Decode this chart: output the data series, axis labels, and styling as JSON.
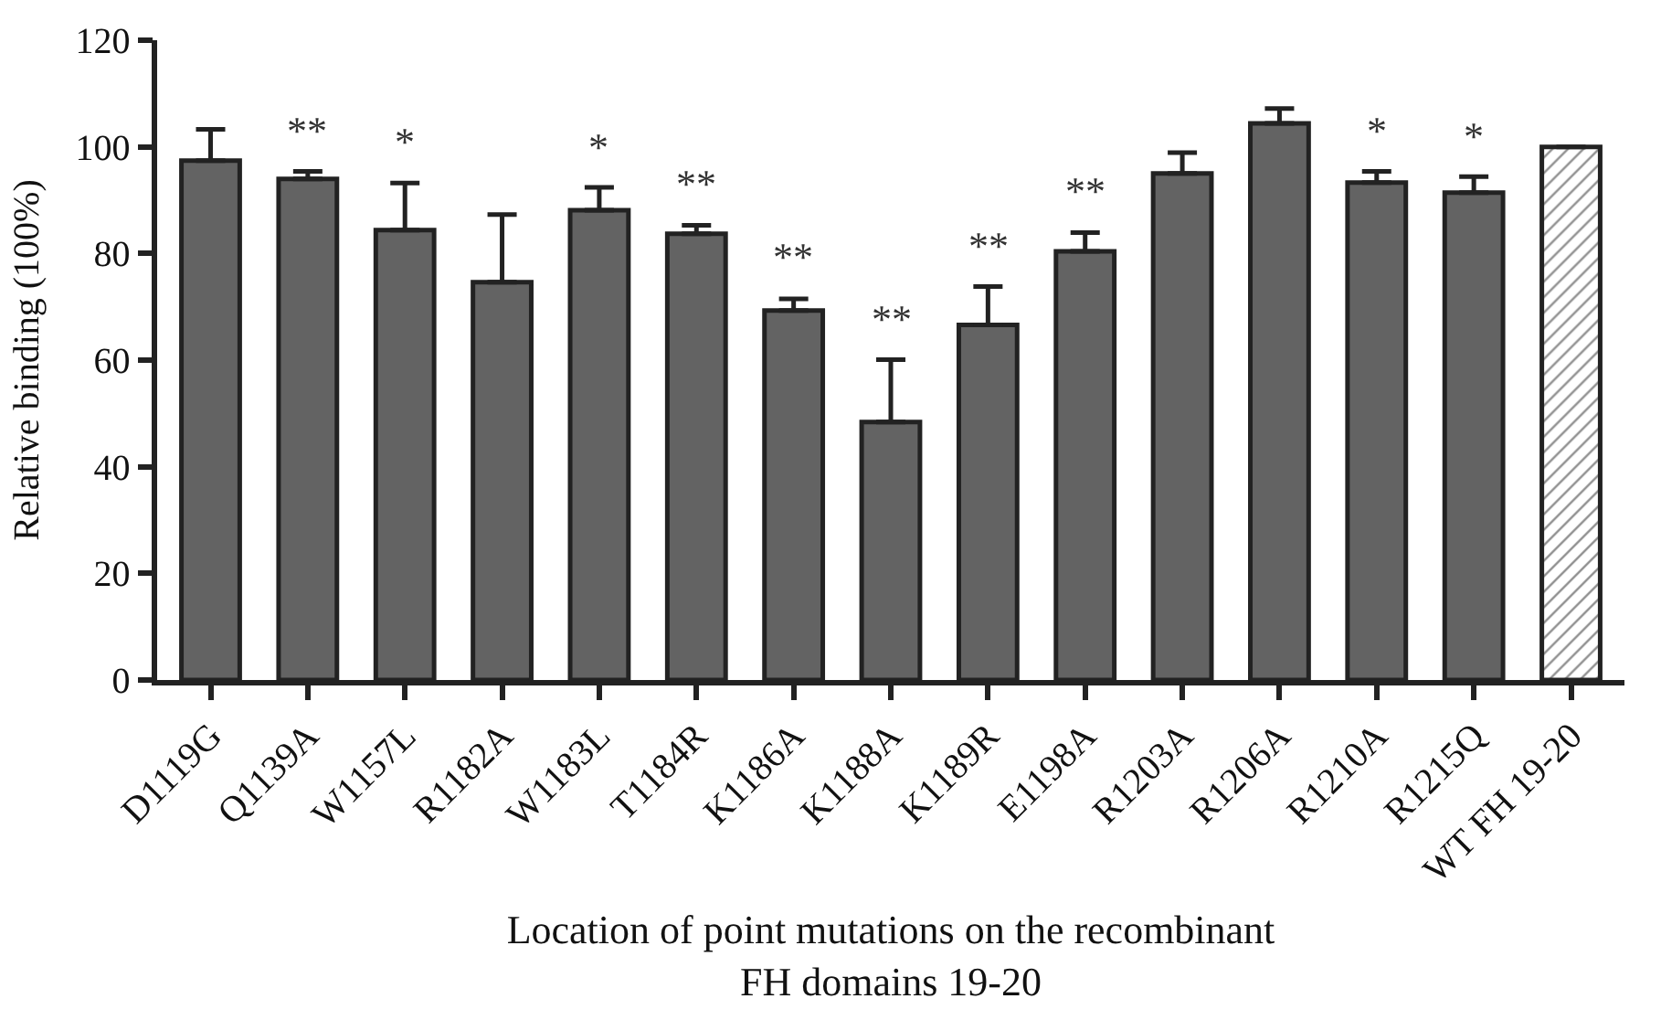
{
  "chart_data": {
    "type": "bar",
    "ylabel": "Relative binding (100%)",
    "xlabel": "Location of point mutations on the recombinant\nFH domains 19-20",
    "categories": [
      "D1119G",
      "Q1139A",
      "W1157L",
      "R1182A",
      "W1183L",
      "T1184R",
      "K1186A",
      "K1188A",
      "K1189R",
      "E1198A",
      "R1203A",
      "R1206A",
      "R1210A",
      "R1215Q",
      "WT FH 19-20"
    ],
    "values": [
      97.4,
      94.0,
      84.4,
      74.6,
      88.1,
      83.7,
      69.3,
      48.4,
      66.6,
      80.4,
      95.0,
      104.4,
      93.3,
      91.4,
      100
    ],
    "errors": [
      [
        97.4,
        103.3
      ],
      [
        94.0,
        95.4
      ],
      [
        84.4,
        93.2
      ],
      [
        74.6,
        87.3
      ],
      [
        88.1,
        92.4
      ],
      [
        83.7,
        85.3
      ],
      [
        69.3,
        71.5
      ],
      [
        48.4,
        60.1
      ],
      [
        66.6,
        73.8
      ],
      [
        80.4,
        83.9
      ],
      [
        95.0,
        98.9
      ],
      [
        104.4,
        107.2
      ],
      [
        93.3,
        95.4
      ],
      [
        91.4,
        94.4
      ],
      null
    ],
    "colors": [
      "#636363",
      "#636363",
      "#636363",
      "#636363",
      "#636363",
      "#636363",
      "#636363",
      "#636363",
      "#636363",
      "#636363",
      "#636363",
      "#636363",
      "#636363",
      "#636363",
      "#ffffff"
    ],
    "ylim": [
      0,
      120
    ],
    "yticks": [
      0,
      20,
      40,
      60,
      80,
      100,
      120
    ],
    "value_labels": [
      null,
      "**",
      "*",
      null,
      "*",
      "**",
      "**",
      "**",
      "**",
      "**",
      null,
      null,
      "*",
      "*",
      null
    ]
  }
}
